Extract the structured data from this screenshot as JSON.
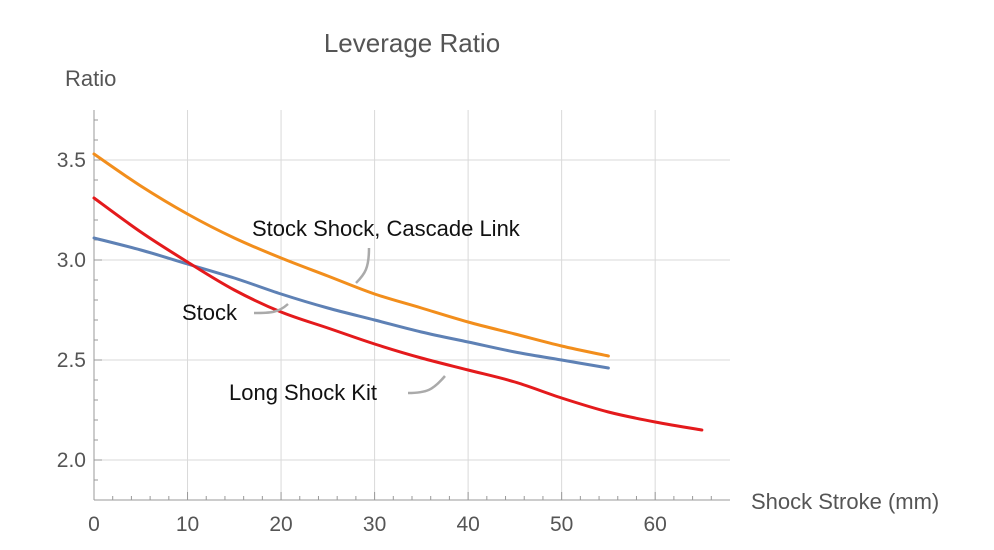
{
  "chart_data": {
    "type": "line",
    "title": "Leverage Ratio",
    "xlabel": "Shock Stroke (mm)",
    "ylabel": "Ratio",
    "xlim": [
      0,
      68
    ],
    "ylim": [
      1.8,
      3.75
    ],
    "xticks": [
      0,
      10,
      20,
      30,
      40,
      50,
      60
    ],
    "yticks": [
      2.0,
      2.5,
      3.0,
      3.5
    ],
    "xtick_labels": [
      "0",
      "10",
      "20",
      "30",
      "40",
      "50",
      "60"
    ],
    "ytick_labels": [
      "2.0",
      "2.5",
      "3.0",
      "3.5"
    ],
    "grid": true,
    "series": [
      {
        "name": "Stock Shock, Cascade Link",
        "color": "#f28e1c",
        "x": [
          0,
          5,
          10,
          15,
          20,
          25,
          30,
          35,
          40,
          45,
          50,
          55
        ],
        "y": [
          3.53,
          3.37,
          3.23,
          3.11,
          3.01,
          2.92,
          2.83,
          2.76,
          2.69,
          2.63,
          2.57,
          2.52
        ]
      },
      {
        "name": "Stock",
        "color": "#5e81b5",
        "x": [
          0,
          5,
          10,
          15,
          20,
          25,
          30,
          35,
          40,
          45,
          50,
          55
        ],
        "y": [
          3.11,
          3.05,
          2.98,
          2.91,
          2.83,
          2.76,
          2.7,
          2.64,
          2.59,
          2.54,
          2.5,
          2.46
        ]
      },
      {
        "name": "Long Shock Kit",
        "color": "#e41a1c",
        "x": [
          0,
          5,
          10,
          15,
          20,
          25,
          30,
          35,
          40,
          45,
          50,
          55,
          60,
          65
        ],
        "y": [
          3.31,
          3.14,
          2.99,
          2.85,
          2.74,
          2.66,
          2.58,
          2.51,
          2.45,
          2.39,
          2.31,
          2.24,
          2.19,
          2.15
        ]
      }
    ]
  }
}
